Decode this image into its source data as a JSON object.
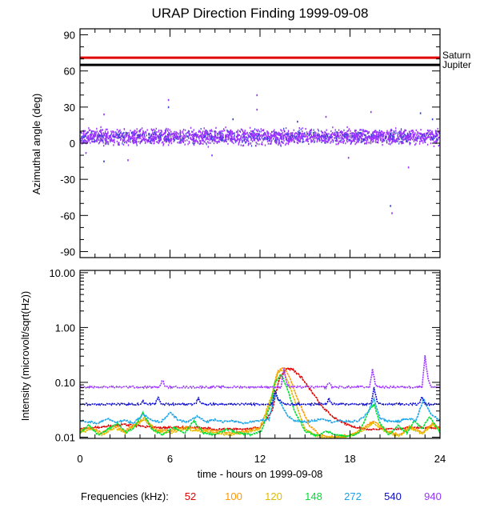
{
  "title": "URAP Direction Finding  1999-09-08",
  "chart_data": [
    {
      "type": "scatter",
      "name": "azimuth",
      "ylabel": "Azimuthal angle (deg)",
      "xlim": [
        0,
        24
      ],
      "ylim": [
        -95,
        95
      ],
      "yticks": [
        "90",
        "60",
        "30",
        "0",
        "-30",
        "-60",
        "-90"
      ],
      "ytick_values": [
        90,
        60,
        30,
        0,
        -30,
        -60,
        -90
      ],
      "reference_lines": [
        {
          "name": "Saturn",
          "y": 71,
          "color": "#e00000"
        },
        {
          "name": "Jupiter",
          "y": 65,
          "color": "#000000"
        }
      ],
      "main_band": {
        "center": 6,
        "spread": 9,
        "color": "#9933ff",
        "secondary_color": "#3344cc"
      },
      "outliers": [
        {
          "x": 1.6,
          "y": -15
        },
        {
          "x": 1.6,
          "y": 24
        },
        {
          "x": 5.9,
          "y": 36
        },
        {
          "x": 5.9,
          "y": 30
        },
        {
          "x": 11.8,
          "y": 40
        },
        {
          "x": 11.8,
          "y": 28
        },
        {
          "x": 10.2,
          "y": 20
        },
        {
          "x": 16.4,
          "y": 22
        },
        {
          "x": 19.4,
          "y": 26
        },
        {
          "x": 20.7,
          "y": -52
        },
        {
          "x": 20.8,
          "y": -58
        },
        {
          "x": 21.9,
          "y": -20
        },
        {
          "x": 22.7,
          "y": 25
        },
        {
          "x": 0.4,
          "y": -8
        },
        {
          "x": 3.2,
          "y": -14
        },
        {
          "x": 14.5,
          "y": 18
        },
        {
          "x": 8.8,
          "y": -10
        },
        {
          "x": 17.9,
          "y": -12
        },
        {
          "x": 23.5,
          "y": 20
        }
      ]
    },
    {
      "type": "line",
      "name": "intensity",
      "ylabel": "Intensity (microvolt/sqrt(Hz))",
      "xlabel": "time - hours on 1999-09-08",
      "xlim": [
        0,
        24
      ],
      "ylim": [
        0.0095,
        11
      ],
      "yscale": "log",
      "xticks": [
        "0",
        "6",
        "12",
        "18",
        "24"
      ],
      "xtick_values": [
        0,
        6,
        12,
        18,
        24
      ],
      "yticks": [
        "10.00",
        "1.00",
        "0.10",
        "0.01"
      ],
      "ytick_values": [
        10,
        1,
        0.1,
        0.01
      ],
      "legend_label": "Frequencies (kHz):",
      "series": [
        {
          "name": "52",
          "color": "#e00000",
          "x": [
            0,
            1,
            2,
            3,
            4,
            5,
            6,
            7,
            8,
            9,
            10,
            11,
            12,
            12.8,
            13.3,
            13.8,
            14.2,
            14.8,
            15.5,
            16.2,
            17,
            17.8,
            18.5,
            19.2,
            20,
            21,
            22,
            23,
            24
          ],
          "y": [
            0.014,
            0.015,
            0.016,
            0.017,
            0.016,
            0.015,
            0.015,
            0.015,
            0.015,
            0.014,
            0.014,
            0.014,
            0.015,
            0.03,
            0.12,
            0.18,
            0.17,
            0.12,
            0.065,
            0.035,
            0.022,
            0.017,
            0.015,
            0.014,
            0.014,
            0.014,
            0.015,
            0.015,
            0.015
          ]
        },
        {
          "name": "100",
          "color": "#ff9900",
          "x": [
            0,
            0.8,
            1.5,
            2.3,
            3,
            3.8,
            4.3,
            5,
            6,
            7,
            8,
            9,
            10,
            11,
            12,
            12.8,
            13.2,
            13.6,
            14,
            14.5,
            15.3,
            16,
            17,
            18,
            18.8,
            19.6,
            20.5,
            21.3,
            22,
            22.8,
            23.5,
            24
          ],
          "y": [
            0.013,
            0.015,
            0.012,
            0.016,
            0.013,
            0.018,
            0.022,
            0.014,
            0.013,
            0.015,
            0.014,
            0.013,
            0.012,
            0.013,
            0.015,
            0.05,
            0.16,
            0.19,
            0.12,
            0.05,
            0.016,
            0.011,
            0.01,
            0.011,
            0.014,
            0.02,
            0.013,
            0.011,
            0.016,
            0.012,
            0.018,
            0.014
          ]
        },
        {
          "name": "120",
          "color": "#ddbb00",
          "x": [
            0,
            0.8,
            1.5,
            2.3,
            3,
            3.8,
            4.3,
            5,
            6,
            7,
            8,
            9,
            10,
            11,
            12,
            12.8,
            13.1,
            13.5,
            13.9,
            14.4,
            15,
            16,
            17,
            18,
            18.8,
            19.5,
            20.5,
            21.3,
            22,
            22.8,
            23.5,
            24
          ],
          "y": [
            0.012,
            0.014,
            0.011,
            0.015,
            0.012,
            0.017,
            0.021,
            0.013,
            0.012,
            0.014,
            0.013,
            0.012,
            0.011,
            0.012,
            0.014,
            0.06,
            0.14,
            0.17,
            0.1,
            0.04,
            0.014,
            0.01,
            0.0098,
            0.0105,
            0.013,
            0.018,
            0.012,
            0.0105,
            0.015,
            0.0115,
            0.017,
            0.013
          ]
        },
        {
          "name": "148",
          "color": "#00dd33",
          "x": [
            0,
            0.6,
            1.2,
            1.9,
            2.5,
            3.1,
            3.7,
            4.2,
            4.8,
            5.5,
            6.2,
            7,
            7.6,
            8.2,
            9,
            9.8,
            10.6,
            11.4,
            12.1,
            12.7,
            13,
            13.4,
            13.8,
            14.3,
            15,
            15.8,
            16.4,
            17,
            17.8,
            18.6,
            19.2,
            19.6,
            20,
            20.6,
            21.2,
            21.8,
            22.3,
            22.8,
            23.3,
            24
          ],
          "y": [
            0.012,
            0.017,
            0.011,
            0.014,
            0.018,
            0.012,
            0.016,
            0.028,
            0.014,
            0.011,
            0.015,
            0.012,
            0.02,
            0.012,
            0.011,
            0.014,
            0.012,
            0.011,
            0.013,
            0.04,
            0.1,
            0.14,
            0.08,
            0.03,
            0.013,
            0.0105,
            0.013,
            0.011,
            0.0102,
            0.012,
            0.028,
            0.04,
            0.018,
            0.011,
            0.016,
            0.012,
            0.02,
            0.014,
            0.024,
            0.012
          ]
        },
        {
          "name": "272",
          "color": "#1aa3e8",
          "x": [
            0,
            0.6,
            1.2,
            1.8,
            2.4,
            3,
            3.6,
            4.2,
            4.8,
            5.4,
            6,
            6.6,
            7.2,
            7.8,
            8.4,
            9,
            9.6,
            10.2,
            10.8,
            11.4,
            12,
            12.6,
            13,
            13.4,
            13.8,
            14.3,
            15,
            15.6,
            16.2,
            16.8,
            17.4,
            18,
            18.6,
            19.2,
            19.6,
            20,
            20.5,
            21.2,
            21.8,
            22.4,
            22.9,
            23.4,
            24
          ],
          "y": [
            0.02,
            0.019,
            0.018,
            0.022,
            0.019,
            0.02,
            0.018,
            0.026,
            0.02,
            0.019,
            0.028,
            0.02,
            0.019,
            0.024,
            0.019,
            0.021,
            0.019,
            0.02,
            0.018,
            0.019,
            0.02,
            0.021,
            0.06,
            0.04,
            0.025,
            0.02,
            0.019,
            0.02,
            0.022,
            0.019,
            0.02,
            0.019,
            0.02,
            0.028,
            0.05,
            0.022,
            0.02,
            0.019,
            0.022,
            0.02,
            0.05,
            0.026,
            0.02
          ]
        },
        {
          "name": "540",
          "color": "#0a0ad0",
          "x": [
            0,
            1,
            2,
            3,
            4,
            4.2,
            4.4,
            5,
            5.2,
            5.4,
            6,
            7,
            7.7,
            7.9,
            8.1,
            9,
            10,
            11,
            12,
            12.8,
            13,
            13.2,
            13.6,
            14,
            15,
            16,
            16.4,
            16.6,
            16.8,
            17,
            18,
            19,
            19.4,
            19.6,
            19.8,
            20,
            21,
            22,
            22.6,
            22.8,
            23,
            23.4,
            24
          ],
          "y": [
            0.04,
            0.04,
            0.04,
            0.04,
            0.04,
            0.045,
            0.04,
            0.04,
            0.055,
            0.04,
            0.04,
            0.04,
            0.04,
            0.052,
            0.04,
            0.04,
            0.04,
            0.04,
            0.04,
            0.04,
            0.07,
            0.05,
            0.04,
            0.04,
            0.04,
            0.04,
            0.04,
            0.05,
            0.04,
            0.04,
            0.04,
            0.04,
            0.04,
            0.08,
            0.045,
            0.04,
            0.04,
            0.04,
            0.04,
            0.055,
            0.04,
            0.04,
            0.04
          ]
        },
        {
          "name": "940",
          "color": "#9933ff",
          "x": [
            0,
            1,
            2,
            3,
            4,
            5,
            5.3,
            5.5,
            5.7,
            6,
            7,
            8,
            9,
            10,
            11,
            12,
            13,
            13.4,
            13.6,
            13.8,
            14,
            15,
            16,
            16.4,
            16.6,
            16.8,
            17,
            18,
            19,
            19.3,
            19.5,
            19.7,
            20,
            21,
            22,
            22.8,
            23,
            23.2,
            23.4,
            24
          ],
          "y": [
            0.082,
            0.082,
            0.082,
            0.082,
            0.082,
            0.082,
            0.082,
            0.11,
            0.082,
            0.082,
            0.082,
            0.082,
            0.082,
            0.082,
            0.082,
            0.082,
            0.082,
            0.082,
            0.18,
            0.09,
            0.082,
            0.082,
            0.082,
            0.082,
            0.1,
            0.082,
            0.082,
            0.082,
            0.082,
            0.082,
            0.17,
            0.09,
            0.082,
            0.082,
            0.082,
            0.082,
            0.3,
            0.12,
            0.082,
            0.082
          ]
        }
      ]
    }
  ]
}
